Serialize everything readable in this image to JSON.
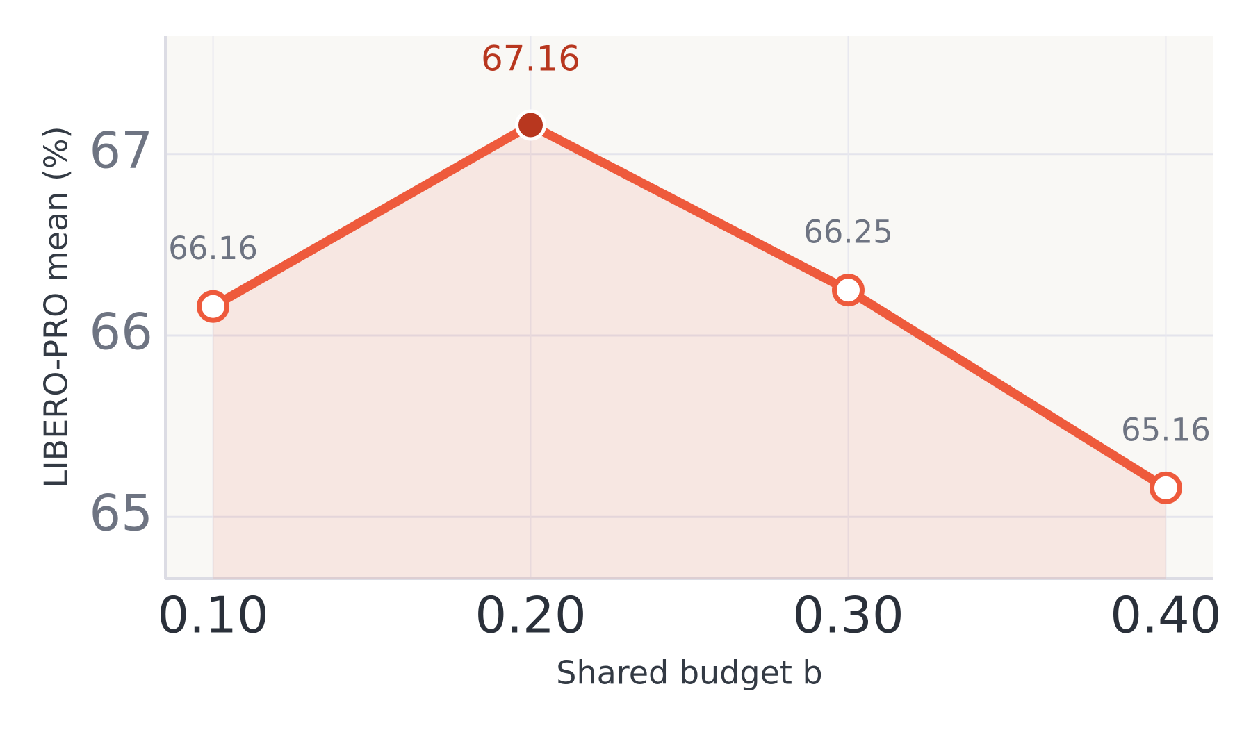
{
  "chart_data": {
    "type": "line",
    "xlabel": "Shared budget b",
    "ylabel": "LIBERO-PRO mean (%)",
    "x": [
      0.1,
      0.2,
      0.3,
      0.4
    ],
    "series": [
      {
        "name": "LIBERO-PRO mean",
        "color": "#ee5a3c",
        "values": [
          66.16,
          67.16,
          66.25,
          65.16
        ]
      }
    ],
    "highlight_x": 0.2,
    "highlight_color": "#b8371f",
    "xlim": [
      0.085,
      0.415
    ],
    "ylim": [
      64.66,
      67.65
    ],
    "xticks": [
      {
        "value": 0.1,
        "label": "0.10"
      },
      {
        "value": 0.2,
        "label": "0.20"
      },
      {
        "value": 0.3,
        "label": "0.30"
      },
      {
        "value": 0.4,
        "label": "0.40"
      }
    ],
    "yticks": [
      65,
      66,
      67
    ],
    "grid": true,
    "fill": true
  }
}
